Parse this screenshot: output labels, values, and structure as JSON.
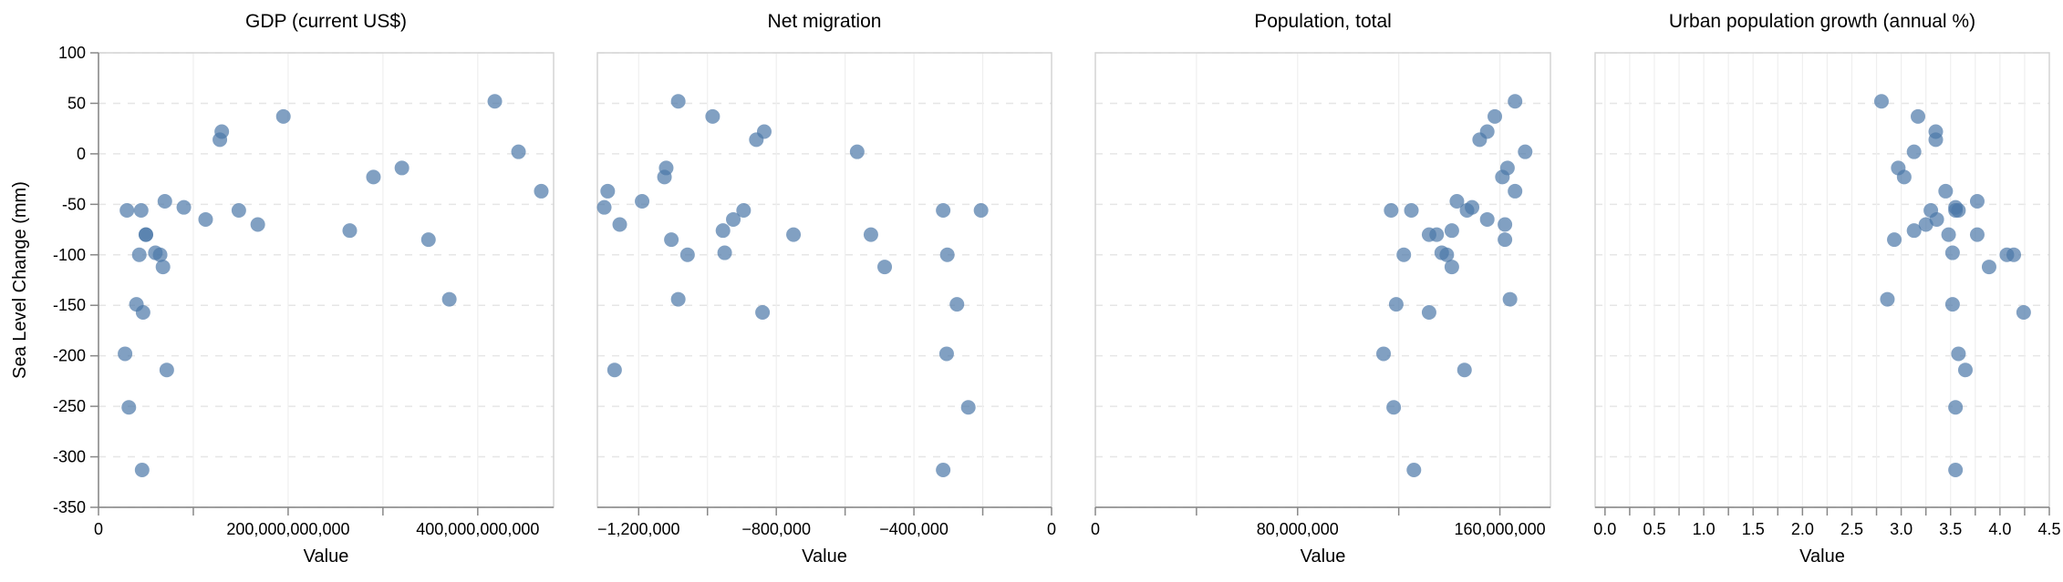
{
  "chart_data": {
    "type": "scatter",
    "layout": "faceted",
    "shared_y": true,
    "ylabel": "Sea Level Change (mm)",
    "ylim": [
      -350,
      100
    ],
    "yticks": [
      100,
      50,
      0,
      -50,
      -100,
      -150,
      -200,
      -250,
      -300,
      -350
    ],
    "grid": "horizontal dashed",
    "color": "#4c78a8",
    "y": [
      52,
      22,
      14,
      37,
      2,
      -14,
      -23,
      -37,
      -47,
      -53,
      -56,
      -56,
      -56,
      -65,
      -70,
      -76,
      -80,
      -80,
      -85,
      -98,
      -100,
      -100,
      -112,
      -144,
      -149,
      -157,
      -198,
      -214,
      -251,
      -313
    ],
    "facets": [
      {
        "title": "GDP (current US$)",
        "xlabel": "Value",
        "xlim": [
          0,
          480000000000
        ],
        "xticks": [
          0,
          200000000000,
          400000000000
        ],
        "xtick_labels": [
          "0",
          "200,000,000,000",
          "400,000,000,000"
        ],
        "x": [
          418000000000,
          130000000000,
          128000000000,
          195000000000,
          443000000000,
          320000000000,
          290000000000,
          467000000000,
          70000000000,
          90000000000,
          30000000000,
          45000000000,
          148000000000,
          113000000000,
          168000000000,
          265000000000,
          50000000000,
          50000000000,
          348000000000,
          60000000000,
          65000000000,
          43000000000,
          68000000000,
          370000000000,
          40000000000,
          47000000000,
          28000000000,
          72000000000,
          32000000000,
          46000000000
        ]
      },
      {
        "title": "Net migration",
        "xlabel": "Value",
        "xlim": [
          -1320000,
          0
        ],
        "xticks": [
          -1200000,
          -800000,
          -400000,
          0
        ],
        "xtick_labels": [
          "−1,200,000",
          "−800,000",
          "−400,000",
          "0"
        ],
        "x": [
          -1085000,
          -835000,
          -858000,
          -985000,
          -565000,
          -1120000,
          -1125000,
          -1290000,
          -1190000,
          -1300000,
          -895000,
          -205000,
          -315000,
          -925000,
          -1255000,
          -955000,
          -750000,
          -525000,
          -1105000,
          -950000,
          -1058000,
          -303000,
          -485000,
          -1085000,
          -275000,
          -840000,
          -305000,
          -1270000,
          -242000,
          -315000
        ]
      },
      {
        "title": "Population, total",
        "xlabel": "Value",
        "xlim": [
          0,
          180000000
        ],
        "xticks": [
          0,
          80000000,
          160000000
        ],
        "xtick_labels": [
          "0",
          "80,000,000",
          "160,000,000"
        ],
        "x": [
          166000000,
          155000000,
          152000000,
          158000000,
          170000000,
          163000000,
          161000000,
          166000000,
          143000000,
          149000000,
          117000000,
          125000000,
          147000000,
          155000000,
          162000000,
          141000000,
          132000000,
          135000000,
          162000000,
          137000000,
          122000000,
          139000000,
          141000000,
          164000000,
          119000000,
          132000000,
          114000000,
          146000000,
          118000000,
          126000000
        ]
      },
      {
        "title": "Urban population growth (annual %)",
        "xlabel": "Value",
        "xlim": [
          -0.1,
          4.5
        ],
        "xticks": [
          0.0,
          0.5,
          1.0,
          1.5,
          2.0,
          2.5,
          3.0,
          3.5,
          4.0,
          4.5
        ],
        "xtick_labels": [
          "0.0",
          "0.5",
          "1.0",
          "1.5",
          "2.0",
          "2.5",
          "3.0",
          "3.5",
          "4.0",
          "4.5"
        ],
        "x": [
          2.8,
          3.35,
          3.35,
          3.17,
          3.13,
          2.97,
          3.03,
          3.45,
          3.77,
          3.55,
          3.55,
          3.58,
          3.3,
          3.36,
          3.25,
          3.13,
          3.48,
          3.77,
          2.93,
          3.52,
          4.07,
          4.14,
          3.89,
          2.86,
          3.52,
          4.24,
          3.58,
          3.65,
          3.55,
          3.55
        ]
      }
    ]
  }
}
